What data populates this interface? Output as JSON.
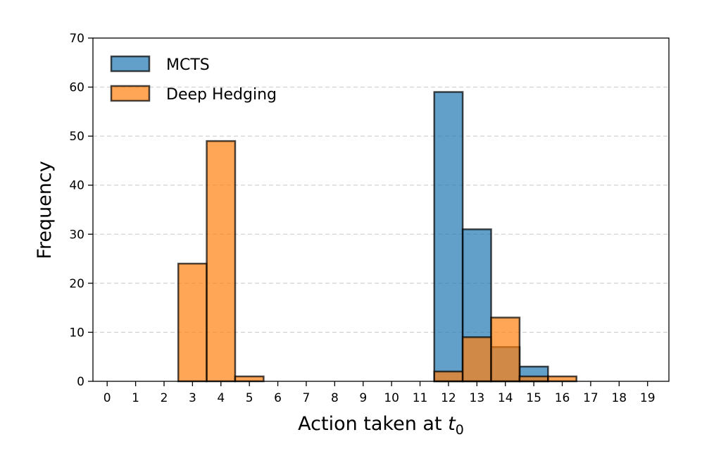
{
  "chart_data": {
    "type": "bar",
    "subtype": "overlapping-histogram",
    "title": "",
    "xlabel": "Action taken at",
    "xlabel_math": "t",
    "xlabel_math_sub": "0",
    "ylabel": "Frequency",
    "categories": [
      0,
      1,
      2,
      3,
      4,
      5,
      6,
      7,
      8,
      9,
      10,
      11,
      12,
      13,
      14,
      15,
      16,
      17,
      18,
      19
    ],
    "xlim": [
      -0.5,
      19.75
    ],
    "ylim": [
      0,
      70
    ],
    "yticks": [
      0,
      10,
      20,
      30,
      40,
      50,
      60,
      70
    ],
    "grid": "y-dashed",
    "legend_position": "top-left",
    "series": [
      {
        "name": "MCTS",
        "color": "#1f77b4",
        "values": [
          0,
          0,
          0,
          0,
          0,
          0,
          0,
          0,
          0,
          0,
          0,
          0,
          59,
          31,
          7,
          3,
          0,
          0,
          0,
          0
        ]
      },
      {
        "name": "Deep Hedging",
        "color": "#ff7f0e",
        "values": [
          0,
          0,
          0,
          24,
          49,
          1,
          0,
          0,
          0,
          0,
          0,
          0,
          2,
          9,
          13,
          1,
          1,
          0,
          0,
          0
        ]
      }
    ]
  }
}
